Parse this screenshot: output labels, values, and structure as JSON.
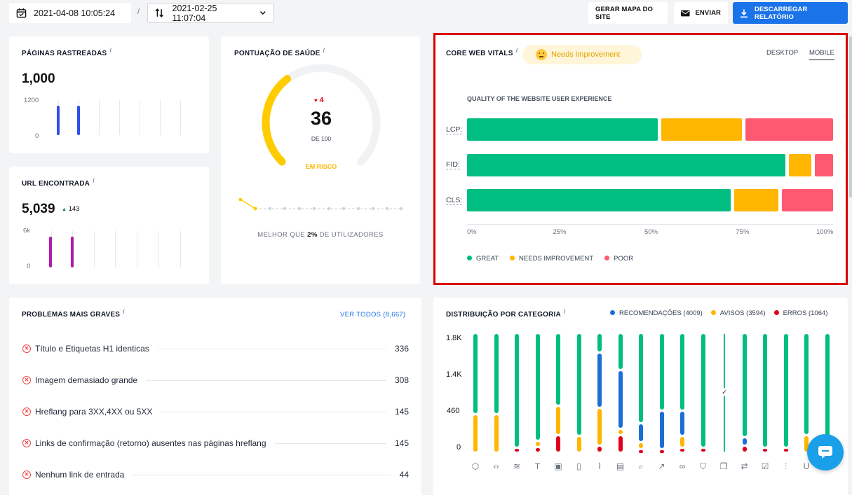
{
  "toolbar": {
    "date_current": "2021-04-08 10:05:24",
    "separator": "/",
    "date_compare": "2021-02-25 11:07:04",
    "sitemap_label": "GERAR MAPA DO SITE",
    "send_label": "ENVIAR",
    "download_label": "DESCARREGAR RELATÓRIO"
  },
  "crawled_pages": {
    "title": "PÁGINAS RASTREADAS",
    "info": "i",
    "value": "1,000",
    "axis_top": "1200",
    "axis_bottom": "0",
    "bars": [
      1000,
      1000
    ]
  },
  "found_urls": {
    "title": "URL ENCONTRADA",
    "info": "i",
    "value": "5,039",
    "delta": "143",
    "axis_top": "6k",
    "axis_bottom": "0",
    "bars": [
      5039,
      5039
    ]
  },
  "health": {
    "title": "PONTUAÇÃO DE SAÚDE",
    "info": "i",
    "delta": "4",
    "score": "36",
    "of_label": "DE 100",
    "status": "EM RISCO",
    "score_value": 36,
    "better_than_prefix": "MELHOR QUE",
    "better_than_value": "2%",
    "better_than_suffix": "DE UTILIZADORES"
  },
  "cwv": {
    "title": "CORE WEB VITALS",
    "info": "i",
    "badge": "Needs improvement",
    "tab_desktop": "DESKTOP",
    "tab_mobile": "MOBILE",
    "subtitle": "QUALITY OF THE WEBSITE USER EXPERIENCE",
    "legend_great": "GREAT",
    "legend_needs": "NEEDS IMPROVEMENT",
    "legend_poor": "POOR",
    "ticks": [
      "0%",
      "25%",
      "50%",
      "75%",
      "100%"
    ],
    "colors": {
      "great": "#00bd82",
      "needs": "#ffb600",
      "poor": "#ff5972"
    }
  },
  "chart_data": {
    "type": "bar",
    "categories": [
      "LCP:",
      "FID:",
      "CLS:"
    ],
    "series": [
      {
        "name": "GREAT",
        "values": [
          53,
          88,
          73
        ]
      },
      {
        "name": "NEEDS IMPROVEMENT",
        "values": [
          23,
          7,
          13
        ]
      },
      {
        "name": "POOR",
        "values": [
          24,
          5,
          14
        ]
      }
    ],
    "xlim": [
      0,
      100
    ],
    "orientation": "horizontal",
    "stacked": true
  },
  "problems": {
    "title": "PROBLEMAS MAIS GRAVES",
    "info": "i",
    "see_all": "VER TODOS (8,667)",
    "items": [
      {
        "label": "Título e Etiquetas H1 identicas",
        "count": "336"
      },
      {
        "label": "Imagem demasiado grande",
        "count": "308"
      },
      {
        "label": "Hreflang para 3XX,4XX ou 5XX",
        "count": "145"
      },
      {
        "label": "Links de confirmação (retorno) ausentes nas páginas hreflang",
        "count": "145"
      },
      {
        "label": "Nenhum link de entrada",
        "count": "44"
      }
    ]
  },
  "distribution": {
    "title": "DISTRIBUIÇÃO POR CATEGORIA",
    "info": "i",
    "legend_recs": "RECOMENDAÇÕES (4009)",
    "legend_warnings": "AVISOS (3594)",
    "legend_errors": "ERROS (1064)",
    "axis": [
      "1.8K",
      "1.4K",
      "460",
      "0"
    ],
    "colors": {
      "green": "#00bd82",
      "blue": "#1a6fd6",
      "yellow": "#ffb600",
      "red": "#e0001b"
    },
    "columns": [
      {
        "g": 0.67,
        "b": 0,
        "y": 0.33,
        "r": 0,
        "icon": "cube-icon"
      },
      {
        "g": 0.67,
        "b": 0,
        "y": 0.33,
        "r": 0,
        "icon": "code-icon"
      },
      {
        "g": 0.96,
        "b": 0,
        "y": 0,
        "r": 0.04,
        "icon": "wind-icon"
      },
      {
        "g": 0.9,
        "b": 0,
        "y": 0.05,
        "r": 0.05,
        "icon": "text-icon"
      },
      {
        "g": 0.6,
        "b": 0,
        "y": 0.25,
        "r": 0.15,
        "icon": "image-icon"
      },
      {
        "g": 0.86,
        "b": 0,
        "y": 0.14,
        "r": 0,
        "icon": "mobile-icon"
      },
      {
        "g": 0.15,
        "b": 0.47,
        "y": 0.32,
        "r": 0.06,
        "icon": "pulse-icon"
      },
      {
        "g": 0.3,
        "b": 0.5,
        "y": 0.05,
        "r": 0.15,
        "icon": "document-icon"
      },
      {
        "g": 0.75,
        "b": 0.16,
        "y": 0.06,
        "r": 0.03,
        "icon": "search-icon"
      },
      {
        "g": 0.64,
        "b": 0.33,
        "y": 0,
        "r": 0.03,
        "icon": "external-link-icon"
      },
      {
        "g": 0.64,
        "b": 0.22,
        "y": 0.1,
        "r": 0.04,
        "icon": "link-icon"
      },
      {
        "g": 0.96,
        "b": 0,
        "y": 0,
        "r": 0.04,
        "icon": "shield-icon"
      },
      {
        "g": 1.0,
        "b": 0,
        "y": 0,
        "r": 0,
        "icon": "copy-icon",
        "thin": true
      },
      {
        "g": 0.87,
        "b": 0.07,
        "y": 0,
        "r": 0.06,
        "icon": "redirect-icon"
      },
      {
        "g": 0.96,
        "b": 0,
        "y": 0,
        "r": 0.04,
        "icon": "checkbox-icon"
      },
      {
        "g": 0.96,
        "b": 0,
        "y": 0,
        "r": 0.04,
        "icon": "sliders-icon"
      },
      {
        "g": 0.85,
        "b": 0,
        "y": 0.15,
        "r": 0,
        "icon": "magnet-icon"
      },
      {
        "g": 1.0,
        "b": 0,
        "y": 0,
        "r": 0,
        "icon": "misc-icon"
      }
    ]
  }
}
